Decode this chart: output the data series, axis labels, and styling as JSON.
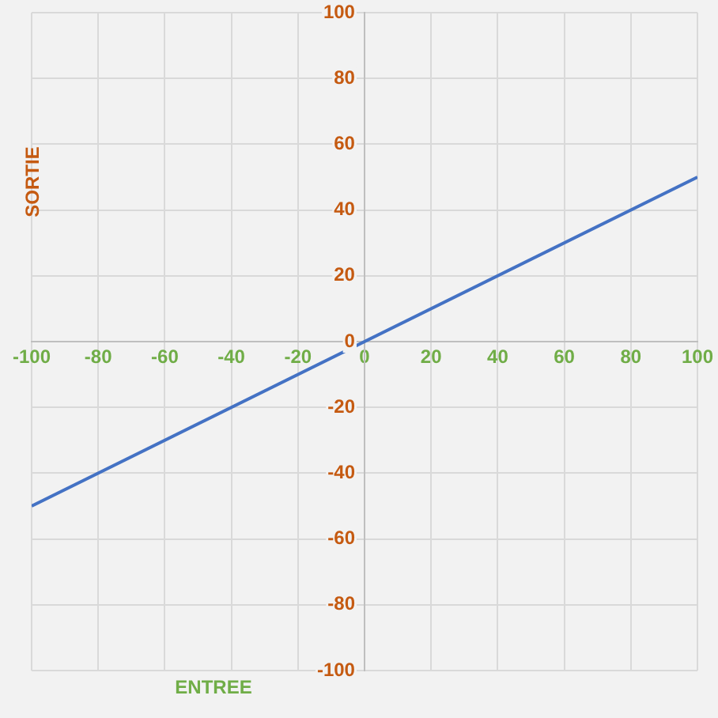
{
  "chart_data": {
    "type": "line",
    "xlabel": "ENTREE",
    "ylabel": "SORTIE",
    "x": [
      -100,
      100
    ],
    "series": [
      {
        "color": "#4472c4",
        "values": [
          -50,
          50
        ]
      }
    ],
    "xlim": [
      -100,
      100
    ],
    "xticks": [
      -100,
      -80,
      -60,
      -40,
      -20,
      0,
      20,
      40,
      60,
      80,
      100
    ],
    "ylim": [
      -100,
      100
    ],
    "yticks": [
      -100,
      -80,
      -60,
      -40,
      -20,
      0,
      20,
      40,
      60,
      80,
      100
    ],
    "grid": true,
    "legend": false,
    "marker": "none",
    "line_style": "solid"
  }
}
